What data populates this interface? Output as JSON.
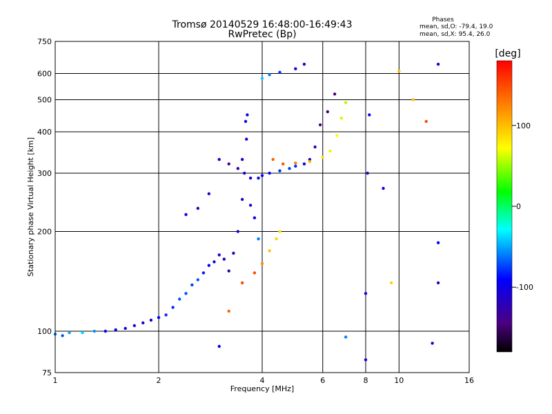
{
  "chart_data": {
    "type": "scatter",
    "title": "Tromsø 20140529 16:48:00-16:49:43",
    "subtitle": "RwPretec (Bp)",
    "xlabel": "Frequency [MHz]",
    "ylabel": "Stationary phase Virtual Height [km]",
    "x_scale": "log",
    "y_scale": "log",
    "xlim": [
      1,
      16
    ],
    "ylim": [
      75,
      750
    ],
    "x_ticks": [
      1,
      2,
      4,
      6,
      8,
      10,
      16
    ],
    "y_ticks": [
      75,
      100,
      200,
      300,
      400,
      500,
      600,
      750
    ],
    "grid": true,
    "stats": {
      "heading": "Phases",
      "line_o": "mean, sd,O: -79.4, 19.0",
      "line_x": "mean, sd,X:  95.4, 26.0"
    },
    "colorbar": {
      "label": "[deg]",
      "min": -180,
      "max": 180,
      "ticks": [
        100,
        0,
        -100
      ]
    },
    "series": [
      {
        "points": [
          [
            1.0,
            98,
            -60
          ],
          [
            1.05,
            97,
            -70
          ],
          [
            1.1,
            99,
            -50
          ],
          [
            1.2,
            99,
            -40
          ],
          [
            1.3,
            100,
            -55
          ],
          [
            1.4,
            100,
            -90
          ],
          [
            1.5,
            101,
            -95
          ],
          [
            1.6,
            102,
            -100
          ],
          [
            1.7,
            104,
            -110
          ],
          [
            1.8,
            106,
            -110
          ],
          [
            1.9,
            108,
            -100
          ],
          [
            2.0,
            110,
            -95
          ],
          [
            2.1,
            112,
            -80
          ],
          [
            2.2,
            118,
            -80
          ],
          [
            2.3,
            125,
            -70
          ],
          [
            2.4,
            130,
            -70
          ],
          [
            2.5,
            138,
            -75
          ],
          [
            2.6,
            143,
            -70
          ],
          [
            2.7,
            150,
            -85
          ],
          [
            2.8,
            158,
            -90
          ],
          [
            2.9,
            162,
            -110
          ],
          [
            3.0,
            170,
            -115
          ],
          [
            3.1,
            165,
            -120
          ],
          [
            3.2,
            152,
            -125
          ],
          [
            3.3,
            172,
            -120
          ],
          [
            3.4,
            200,
            -110
          ],
          [
            3.5,
            250,
            -115
          ],
          [
            3.55,
            300,
            -100
          ],
          [
            3.6,
            380,
            -105
          ],
          [
            3.62,
            450,
            -95
          ],
          [
            3.58,
            430,
            -100
          ],
          [
            3.5,
            330,
            -110
          ],
          [
            3.4,
            310,
            -130
          ],
          [
            3.2,
            320,
            -140
          ],
          [
            3.0,
            330,
            -110
          ],
          [
            2.8,
            260,
            -120
          ],
          [
            2.6,
            235,
            -110
          ],
          [
            2.4,
            225,
            -100
          ],
          [
            3.7,
            240,
            -110
          ],
          [
            3.8,
            220,
            -100
          ],
          [
            3.9,
            190,
            -60
          ],
          [
            3.7,
            290,
            -100
          ],
          [
            3.9,
            290,
            -100
          ],
          [
            4.0,
            295,
            -95
          ],
          [
            4.2,
            300,
            -90
          ],
          [
            4.5,
            305,
            -80
          ],
          [
            4.8,
            310,
            -75
          ],
          [
            5.0,
            315,
            -80
          ],
          [
            5.3,
            320,
            -100
          ],
          [
            5.5,
            330,
            -120
          ],
          [
            5.7,
            360,
            -130
          ],
          [
            5.9,
            420,
            -140
          ],
          [
            6.2,
            460,
            -150
          ],
          [
            6.5,
            520,
            -145
          ],
          [
            4.3,
            330,
            140
          ],
          [
            4.6,
            320,
            145
          ],
          [
            5.0,
            322,
            130
          ],
          [
            5.5,
            325,
            100
          ],
          [
            6.0,
            335,
            85
          ],
          [
            6.3,
            350,
            80
          ],
          [
            6.6,
            390,
            70
          ],
          [
            6.8,
            440,
            60
          ],
          [
            7.0,
            490,
            55
          ],
          [
            4.0,
            580,
            -40
          ],
          [
            4.2,
            595,
            -60
          ],
          [
            4.5,
            605,
            -80
          ],
          [
            5.0,
            620,
            -110
          ],
          [
            5.3,
            640,
            -120
          ],
          [
            3.2,
            115,
            140
          ],
          [
            3.5,
            140,
            150
          ],
          [
            3.8,
            150,
            150
          ],
          [
            4.0,
            160,
            120
          ],
          [
            4.2,
            175,
            95
          ],
          [
            4.4,
            190,
            90
          ],
          [
            4.5,
            200,
            85
          ],
          [
            3.0,
            90,
            -90
          ],
          [
            7.0,
            96,
            -60
          ],
          [
            8.0,
            82,
            -100
          ],
          [
            8.0,
            130,
            -100
          ],
          [
            8.1,
            300,
            -120
          ],
          [
            8.2,
            450,
            -100
          ],
          [
            9.0,
            270,
            -100
          ],
          [
            9.5,
            140,
            90
          ],
          [
            10.0,
            610,
            100
          ],
          [
            11.0,
            500,
            100
          ],
          [
            12.0,
            430,
            150
          ],
          [
            13.0,
            640,
            -110
          ],
          [
            13.0,
            185,
            -90
          ],
          [
            13.0,
            140,
            -120
          ],
          [
            12.5,
            92,
            -110
          ]
        ]
      }
    ]
  }
}
